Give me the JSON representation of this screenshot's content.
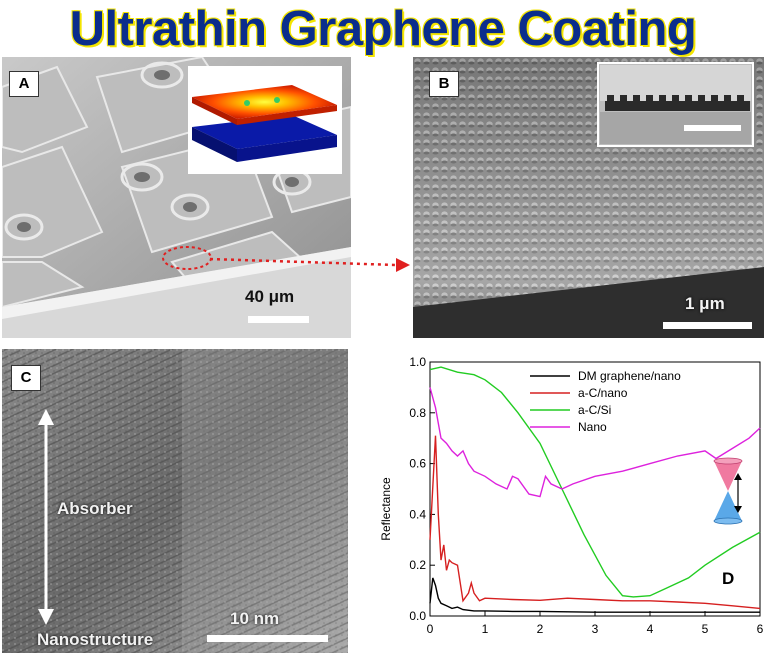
{
  "title": "Ultrathin Graphene Coating",
  "panel_a": {
    "label": "A",
    "scale": "40 μm"
  },
  "panel_b": {
    "label": "B",
    "scale": "1 μm"
  },
  "panel_c": {
    "label": "C",
    "scale": "10 nm",
    "top_label": "Absorber",
    "bottom_label": "Nanostructure"
  },
  "panel_d": {
    "label": "D"
  },
  "chart_data": {
    "type": "line",
    "xlabel": "",
    "ylabel": "Reflectance",
    "xlim": [
      0,
      6
    ],
    "ylim": [
      0,
      1.0
    ],
    "xticks": [
      "0",
      "1",
      "2",
      "3",
      "4",
      "5",
      "6"
    ],
    "yticks": [
      "0.0",
      "0.2",
      "0.4",
      "0.6",
      "0.8",
      "1.0"
    ],
    "legend_position": "top-right",
    "series": [
      {
        "name": "DM graphene/nano",
        "color": "#000000",
        "x": [
          0,
          0.05,
          0.1,
          0.15,
          0.2,
          0.3,
          0.4,
          0.5,
          0.6,
          0.8,
          1.0,
          1.5,
          2.0,
          3.0,
          4.0,
          5.0,
          6.0
        ],
        "y": [
          0.05,
          0.15,
          0.12,
          0.07,
          0.05,
          0.04,
          0.03,
          0.035,
          0.025,
          0.02,
          0.02,
          0.018,
          0.018,
          0.015,
          0.015,
          0.015,
          0.015
        ]
      },
      {
        "name": "a-C/nano",
        "color": "#d62020",
        "x": [
          0,
          0.1,
          0.15,
          0.2,
          0.25,
          0.3,
          0.35,
          0.4,
          0.5,
          0.6,
          0.7,
          0.75,
          0.8,
          0.9,
          1.0,
          1.5,
          2.0,
          2.5,
          3.0,
          3.5,
          4.0,
          4.5,
          5.0,
          5.5,
          6.0
        ],
        "y": [
          0.3,
          0.71,
          0.4,
          0.22,
          0.28,
          0.18,
          0.22,
          0.21,
          0.2,
          0.06,
          0.09,
          0.13,
          0.09,
          0.06,
          0.07,
          0.065,
          0.062,
          0.07,
          0.065,
          0.06,
          0.06,
          0.055,
          0.05,
          0.04,
          0.03
        ]
      },
      {
        "name": "a-C/Si",
        "color": "#22cc22",
        "x": [
          0,
          0.2,
          0.5,
          0.8,
          1.0,
          1.3,
          1.6,
          2.0,
          2.4,
          2.8,
          3.2,
          3.5,
          3.7,
          4.0,
          4.3,
          4.7,
          5.0,
          5.5,
          6.0
        ],
        "y": [
          0.97,
          0.98,
          0.96,
          0.95,
          0.93,
          0.88,
          0.8,
          0.68,
          0.5,
          0.32,
          0.16,
          0.08,
          0.075,
          0.08,
          0.11,
          0.15,
          0.2,
          0.27,
          0.33
        ]
      },
      {
        "name": "Nano",
        "color": "#dd22dd",
        "x": [
          0,
          0.1,
          0.2,
          0.3,
          0.4,
          0.5,
          0.6,
          0.7,
          0.8,
          1.0,
          1.2,
          1.4,
          1.5,
          1.6,
          1.8,
          2.0,
          2.1,
          2.2,
          2.4,
          2.6,
          3.0,
          3.5,
          4.0,
          4.5,
          5.0,
          5.2,
          5.5,
          5.8,
          6.0
        ],
        "y": [
          0.9,
          0.82,
          0.7,
          0.68,
          0.65,
          0.63,
          0.65,
          0.6,
          0.57,
          0.55,
          0.52,
          0.5,
          0.55,
          0.54,
          0.48,
          0.47,
          0.55,
          0.52,
          0.5,
          0.52,
          0.55,
          0.57,
          0.6,
          0.63,
          0.65,
          0.62,
          0.66,
          0.7,
          0.74
        ]
      }
    ]
  }
}
